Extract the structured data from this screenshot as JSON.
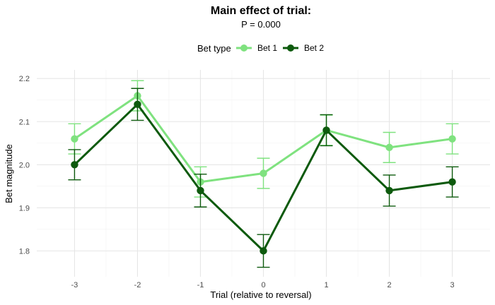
{
  "chart_data": {
    "type": "line",
    "title": "Main effect of trial:",
    "subtitle": "P = 0.000",
    "legend_title": "Bet type",
    "legend_position": "top",
    "xlabel": "Trial (relative to reversal)",
    "ylabel": "Bet magnitude",
    "x": [
      -3,
      -2,
      -1,
      0,
      1,
      2,
      3
    ],
    "xlim": [
      -3.6,
      3.6
    ],
    "ylim": [
      1.74,
      2.22
    ],
    "yticks": [
      1.8,
      1.9,
      2.0,
      2.1,
      2.2
    ],
    "ytick_labels": [
      "1.8",
      "1.9",
      "2.0",
      "2.1",
      "2.2"
    ],
    "xtick_labels": [
      "-3",
      "-2",
      "-1",
      "0",
      "1",
      "2",
      "3"
    ],
    "grid": true,
    "series": [
      {
        "name": "Bet 1",
        "color": "#7fe27f",
        "values": [
          2.06,
          2.16,
          1.96,
          1.98,
          2.08,
          2.04,
          2.06
        ],
        "error": [
          0.035,
          0.035,
          0.035,
          0.035,
          0.035,
          0.035,
          0.035
        ]
      },
      {
        "name": "Bet 2",
        "color": "#0d5a0d",
        "values": [
          2.0,
          2.14,
          1.94,
          1.8,
          2.08,
          1.94,
          1.96
        ],
        "error": [
          0.035,
          0.037,
          0.038,
          0.038,
          0.036,
          0.036,
          0.035
        ]
      }
    ]
  }
}
